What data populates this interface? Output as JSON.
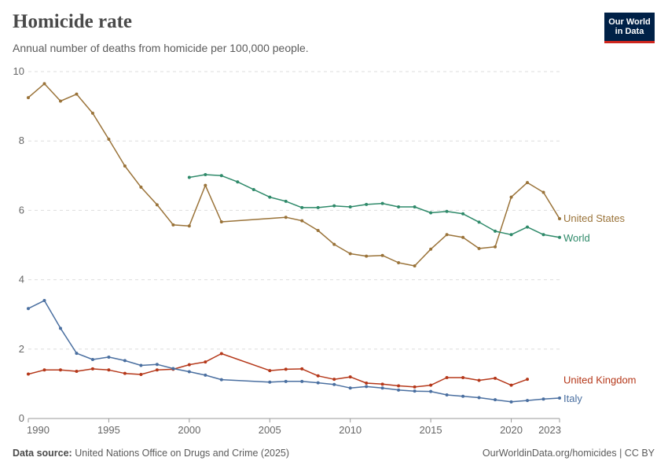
{
  "header": {
    "title": "Homicide rate",
    "subtitle": "Annual number of deaths from homicide per 100,000 people."
  },
  "logo": {
    "line1": "Our World",
    "line2": "in Data"
  },
  "footer": {
    "source_label": "Data source:",
    "source_text": "United Nations Office on Drugs and Crime (2025)",
    "right_text": "OurWorldinData.org/homicides | CC BY"
  },
  "colors": {
    "united_states": "#9a7339",
    "world": "#2f8a6a",
    "united_kingdom": "#b5381a",
    "italy": "#4a6fa0",
    "grid": "#dddddd",
    "axis": "#999999"
  },
  "chart_data": {
    "type": "line",
    "title": "Homicide rate",
    "subtitle": "Annual number of deaths from homicide per 100,000 people.",
    "xlabel": "",
    "ylabel": "",
    "xlim": [
      1990,
      2023
    ],
    "ylim": [
      0,
      10
    ],
    "x_ticks": [
      "1990",
      "1995",
      "2000",
      "2005",
      "2010",
      "2015",
      "2020",
      "2023"
    ],
    "y_ticks": [
      "0",
      "2",
      "4",
      "6",
      "8",
      "10"
    ],
    "grid": true,
    "legend": "inline-right",
    "series": [
      {
        "name": "United States",
        "color_key": "united_states",
        "points": [
          [
            1990,
            9.25
          ],
          [
            1991,
            9.65
          ],
          [
            1992,
            9.15
          ],
          [
            1993,
            9.35
          ],
          [
            1994,
            8.8
          ],
          [
            1995,
            8.05
          ],
          [
            1996,
            7.28
          ],
          [
            1997,
            6.67
          ],
          [
            1998,
            6.16
          ],
          [
            1999,
            5.58
          ],
          [
            2000,
            5.55
          ],
          [
            2001,
            6.72
          ],
          [
            2002,
            5.67
          ],
          [
            2006,
            5.8
          ],
          [
            2007,
            5.7
          ],
          [
            2008,
            5.42
          ],
          [
            2009,
            5.02
          ],
          [
            2010,
            4.75
          ],
          [
            2011,
            4.68
          ],
          [
            2012,
            4.7
          ],
          [
            2013,
            4.49
          ],
          [
            2014,
            4.4
          ],
          [
            2015,
            4.88
          ],
          [
            2016,
            5.3
          ],
          [
            2017,
            5.22
          ],
          [
            2018,
            4.9
          ],
          [
            2019,
            4.95
          ],
          [
            2020,
            6.38
          ],
          [
            2021,
            6.8
          ],
          [
            2022,
            6.52
          ],
          [
            2023,
            5.76
          ]
        ]
      },
      {
        "name": "World",
        "color_key": "world",
        "points": [
          [
            2000,
            6.95
          ],
          [
            2001,
            7.03
          ],
          [
            2002,
            7.0
          ],
          [
            2003,
            6.82
          ],
          [
            2004,
            6.6
          ],
          [
            2005,
            6.38
          ],
          [
            2006,
            6.26
          ],
          [
            2007,
            6.08
          ],
          [
            2008,
            6.08
          ],
          [
            2009,
            6.13
          ],
          [
            2010,
            6.1
          ],
          [
            2011,
            6.17
          ],
          [
            2012,
            6.2
          ],
          [
            2013,
            6.1
          ],
          [
            2014,
            6.1
          ],
          [
            2015,
            5.93
          ],
          [
            2016,
            5.97
          ],
          [
            2017,
            5.9
          ],
          [
            2018,
            5.66
          ],
          [
            2019,
            5.4
          ],
          [
            2020,
            5.3
          ],
          [
            2021,
            5.52
          ],
          [
            2022,
            5.3
          ],
          [
            2023,
            5.22
          ]
        ]
      },
      {
        "name": "United Kingdom",
        "color_key": "united_kingdom",
        "points": [
          [
            1990,
            1.28
          ],
          [
            1991,
            1.4
          ],
          [
            1992,
            1.4
          ],
          [
            1993,
            1.36
          ],
          [
            1994,
            1.43
          ],
          [
            1995,
            1.4
          ],
          [
            1996,
            1.3
          ],
          [
            1997,
            1.27
          ],
          [
            1998,
            1.4
          ],
          [
            1999,
            1.42
          ],
          [
            2000,
            1.55
          ],
          [
            2001,
            1.63
          ],
          [
            2002,
            1.87
          ],
          [
            2005,
            1.38
          ],
          [
            2006,
            1.42
          ],
          [
            2007,
            1.43
          ],
          [
            2008,
            1.23
          ],
          [
            2009,
            1.13
          ],
          [
            2010,
            1.2
          ],
          [
            2011,
            1.02
          ],
          [
            2012,
            0.99
          ],
          [
            2013,
            0.94
          ],
          [
            2014,
            0.91
          ],
          [
            2015,
            0.96
          ],
          [
            2016,
            1.18
          ],
          [
            2017,
            1.18
          ],
          [
            2018,
            1.1
          ],
          [
            2019,
            1.16
          ],
          [
            2020,
            0.96
          ],
          [
            2021,
            1.13
          ]
        ]
      },
      {
        "name": "Italy",
        "color_key": "italy",
        "points": [
          [
            1990,
            3.17
          ],
          [
            1991,
            3.4
          ],
          [
            1992,
            2.6
          ],
          [
            1993,
            1.88
          ],
          [
            1994,
            1.7
          ],
          [
            1995,
            1.77
          ],
          [
            1996,
            1.67
          ],
          [
            1997,
            1.53
          ],
          [
            1998,
            1.56
          ],
          [
            1999,
            1.44
          ],
          [
            2000,
            1.35
          ],
          [
            2001,
            1.25
          ],
          [
            2002,
            1.12
          ],
          [
            2005,
            1.05
          ],
          [
            2006,
            1.07
          ],
          [
            2007,
            1.07
          ],
          [
            2008,
            1.03
          ],
          [
            2009,
            0.98
          ],
          [
            2010,
            0.88
          ],
          [
            2011,
            0.92
          ],
          [
            2012,
            0.88
          ],
          [
            2013,
            0.82
          ],
          [
            2014,
            0.79
          ],
          [
            2015,
            0.78
          ],
          [
            2016,
            0.68
          ],
          [
            2017,
            0.64
          ],
          [
            2018,
            0.6
          ],
          [
            2019,
            0.54
          ],
          [
            2020,
            0.48
          ],
          [
            2021,
            0.52
          ],
          [
            2022,
            0.56
          ],
          [
            2023,
            0.59
          ]
        ]
      }
    ]
  }
}
